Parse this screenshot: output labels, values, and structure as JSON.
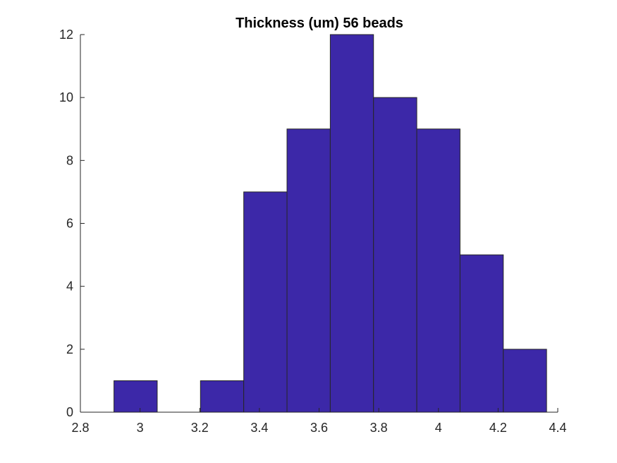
{
  "chart_data": {
    "type": "bar",
    "title": "Thickness (um) 56 beads",
    "xlabel": "",
    "ylabel": "",
    "bin_edges": [
      2.9125,
      3.0575,
      3.2025,
      3.3475,
      3.4925,
      3.6375,
      3.7825,
      3.9275,
      4.0725,
      4.2175,
      4.3625
    ],
    "values": [
      1,
      0,
      1,
      7,
      9,
      12,
      10,
      9,
      5,
      2
    ],
    "xlim": [
      2.8,
      4.4
    ],
    "ylim": [
      0,
      12
    ],
    "xticks": [
      "2.8",
      "3",
      "3.2",
      "3.4",
      "3.6",
      "3.8",
      "4",
      "4.2",
      "4.4"
    ],
    "yticks": [
      "0",
      "2",
      "4",
      "6",
      "8",
      "10",
      "12"
    ],
    "grid": false,
    "colors": {
      "bar_fill": "#3c28a8",
      "bar_edge": "#262626",
      "axis": "#262626"
    }
  }
}
